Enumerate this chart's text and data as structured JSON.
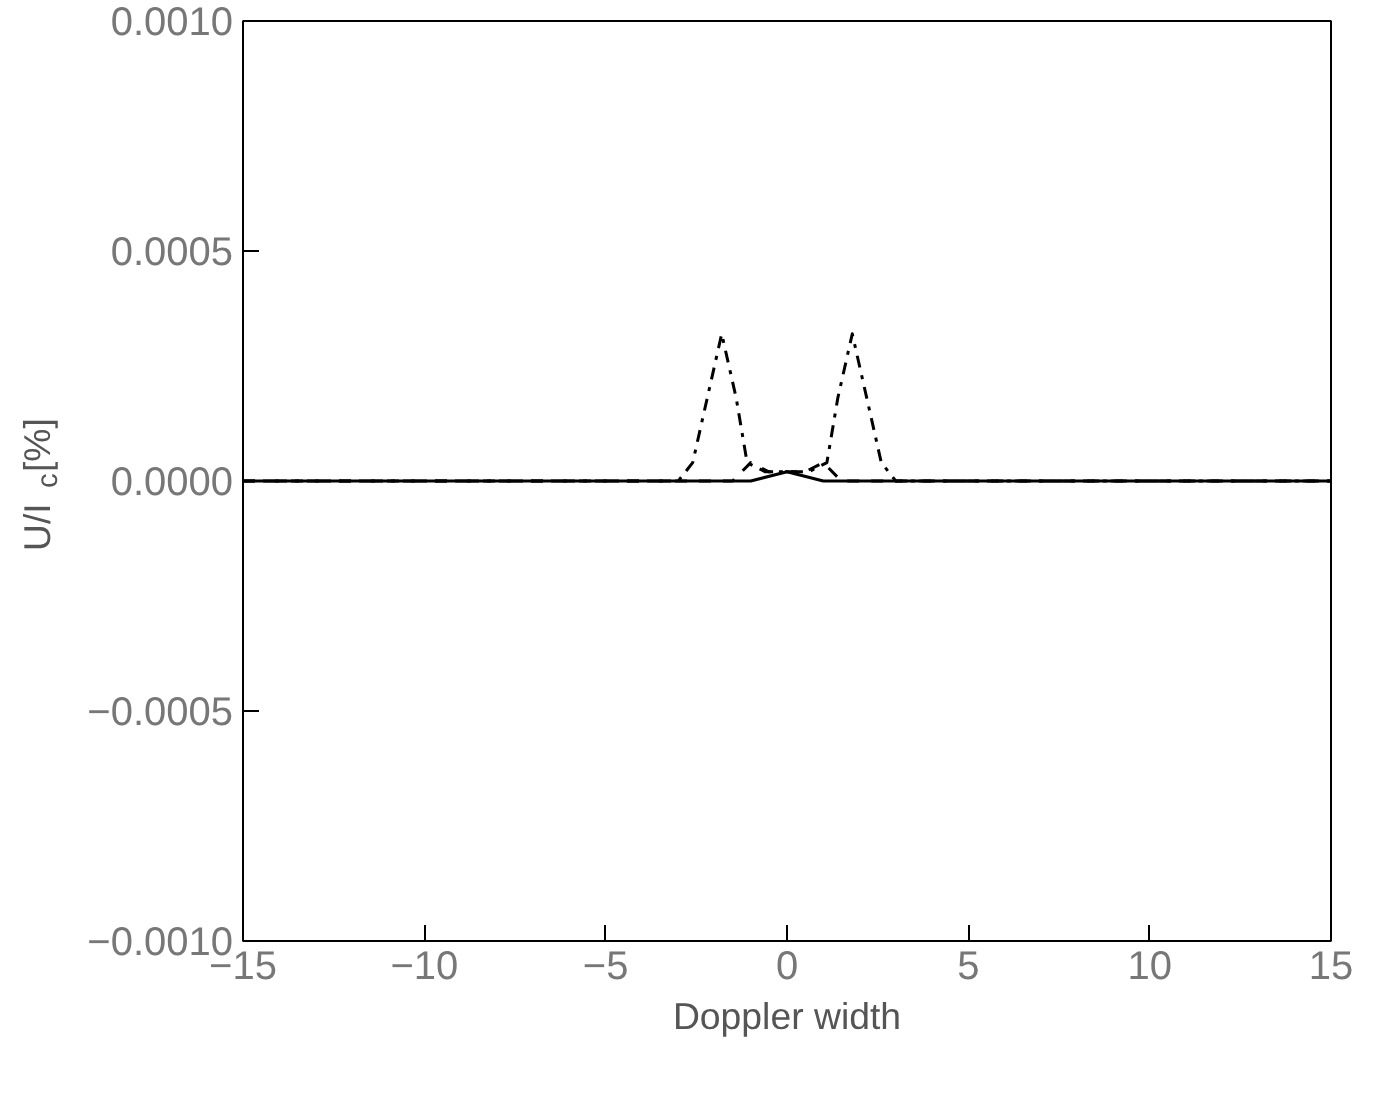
{
  "chart_data": {
    "type": "line",
    "xlabel": "Doppler width",
    "ylabel": "U/I$_{c}$[%]",
    "xlim": [
      -15,
      15
    ],
    "xticks": [
      {
        "value": -15,
        "label": "−15"
      },
      {
        "value": -10,
        "label": "−10"
      },
      {
        "value": -5,
        "label": "−5"
      },
      0,
      5,
      10,
      15
    ],
    "ylim": [
      -0.001,
      0.001
    ],
    "yticks": [
      {
        "value": -0.001,
        "label": "−0.0010"
      },
      {
        "value": -0.0005,
        "label": "−0.0005"
      },
      {
        "value": 0,
        "label": "0.0000"
      },
      {
        "value": 0.0005,
        "label": "0.0005"
      },
      {
        "value": 0.001,
        "label": "0.0010"
      }
    ],
    "grid": false,
    "series": [
      {
        "color": "#000000",
        "line_style": "solid",
        "x": [
          -15,
          -1.5,
          -1,
          0,
          1,
          1.5,
          15
        ],
        "values": [
          0,
          0,
          0,
          2e-05,
          0,
          0,
          0
        ]
      },
      {
        "color": "#000000",
        "line_style": "dashed",
        "x": [
          -15,
          -2,
          -1.5,
          -1,
          -0.5,
          0,
          0.5,
          1,
          1.5,
          2,
          15
        ],
        "values": [
          0,
          0,
          0,
          4e-05,
          2e-05,
          2e-05,
          2e-05,
          4e-05,
          0,
          0,
          0
        ]
      },
      {
        "color": "#000000",
        "line_style": "dashdot",
        "x": [
          -15,
          -3,
          -2.6,
          -2.2,
          -1.8,
          -1.4,
          -1.1,
          -0.6,
          0,
          0.6,
          1.1,
          1.4,
          1.8,
          2.2,
          2.6,
          3,
          15
        ],
        "values": [
          0,
          0,
          4e-05,
          0.00018,
          0.00032,
          0.00018,
          4e-05,
          2e-05,
          2e-05,
          2e-05,
          4e-05,
          0.00018,
          0.00032,
          0.00018,
          4e-05,
          0,
          0
        ]
      }
    ]
  }
}
